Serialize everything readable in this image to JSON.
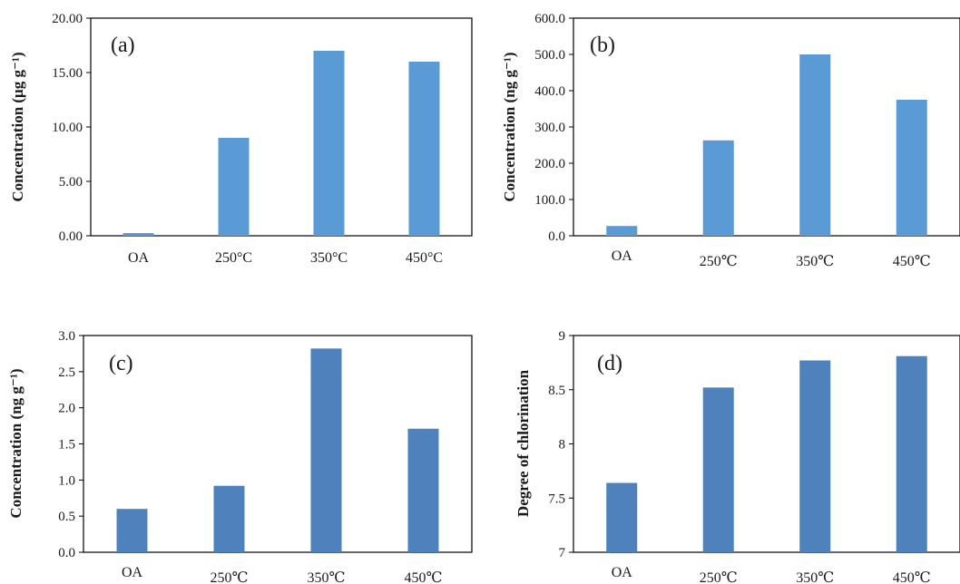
{
  "chart_data": [
    {
      "type": "bar",
      "panel_label": "(a)",
      "ylabel": "Concentration (μg g⁻¹)",
      "categories": [
        "OA",
        "250°C",
        "350°C",
        "450°C"
      ],
      "values": [
        0.25,
        9.0,
        17.0,
        16.0
      ],
      "ylim": [
        0,
        20
      ],
      "ytick_values": [
        0,
        5,
        10,
        15,
        20
      ],
      "ytick_labels": [
        "0.00",
        "5.00",
        "10.00",
        "15.00",
        "20.00"
      ],
      "bar_color": "#5b9bd5",
      "grid": false
    },
    {
      "type": "bar",
      "panel_label": "(b)",
      "ylabel": "Concentration (ng g⁻¹)",
      "categories": [
        "OA",
        "250℃",
        "350℃",
        "450℃"
      ],
      "values": [
        27,
        263,
        500,
        375
      ],
      "ylim": [
        0,
        600
      ],
      "ytick_values": [
        0,
        100,
        200,
        300,
        400,
        500,
        600
      ],
      "ytick_labels": [
        "0.0",
        "100.0",
        "200.0",
        "300.0",
        "400.0",
        "500.0",
        "600.0"
      ],
      "bar_color": "#5b9bd5",
      "grid": false
    },
    {
      "type": "bar",
      "panel_label": "(c)",
      "ylabel": "Concentration (ng g⁻¹)",
      "categories": [
        "OA",
        "250℃",
        "350℃",
        "450℃"
      ],
      "values": [
        0.6,
        0.92,
        2.82,
        1.71
      ],
      "ylim": [
        0,
        3
      ],
      "ytick_values": [
        0,
        0.5,
        1,
        1.5,
        2,
        2.5,
        3
      ],
      "ytick_labels": [
        "0.0",
        "0.5",
        "1.0",
        "1.5",
        "2.0",
        "2.5",
        "3.0"
      ],
      "bar_color": "#4f81bd",
      "grid": false
    },
    {
      "type": "bar",
      "panel_label": "(d)",
      "ylabel": "Degree of chlorination",
      "categories": [
        "OA",
        "250℃",
        "350℃",
        "450℃"
      ],
      "values": [
        7.64,
        8.52,
        8.77,
        8.81
      ],
      "ylim": [
        7,
        9
      ],
      "ytick_values": [
        7,
        7.5,
        8,
        8.5,
        9
      ],
      "ytick_labels": [
        "7",
        "7.5",
        "8",
        "8.5",
        "9"
      ],
      "bar_color": "#4f81bd",
      "grid": false
    }
  ]
}
